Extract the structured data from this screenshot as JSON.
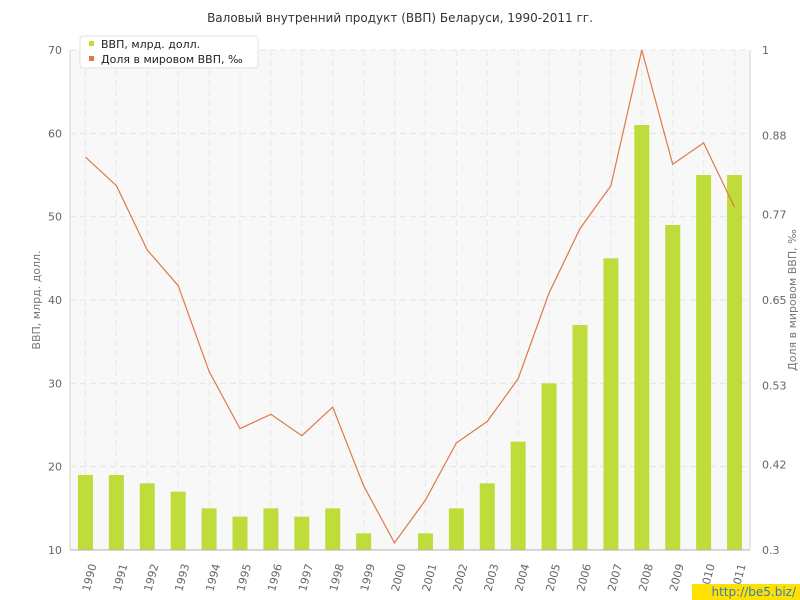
{
  "chart_data": {
    "type": "bar+line",
    "title": "Валовый внутренний продукт (ВВП) Беларуси, 1990-2011 гг.",
    "categories": [
      "1990",
      "1991",
      "1992",
      "1993",
      "1994",
      "1995",
      "1996",
      "1997",
      "1998",
      "1999",
      "2000",
      "2001",
      "2002",
      "2003",
      "2004",
      "2005",
      "2006",
      "2007",
      "2008",
      "2009",
      "2010",
      "2011"
    ],
    "series": [
      {
        "name": "ВВП, млрд. долл.",
        "type": "bar",
        "axis": "left",
        "color": "#bedd3a",
        "values": [
          19,
          19,
          18,
          17,
          15,
          14,
          15,
          14,
          15,
          12,
          10,
          12,
          15,
          18,
          23,
          30,
          37,
          45,
          61,
          49,
          55,
          55
        ]
      },
      {
        "name": "Доля в мировом ВВП, ‰",
        "type": "line",
        "axis": "right",
        "color": "#e07848",
        "values": [
          0.85,
          0.81,
          0.72,
          0.67,
          0.55,
          0.47,
          0.49,
          0.46,
          0.5,
          0.39,
          0.31,
          0.37,
          0.45,
          0.48,
          0.54,
          0.66,
          0.75,
          0.81,
          1.0,
          0.84,
          0.87,
          0.78
        ]
      }
    ],
    "ylabel": "ВВП, млрд. долл.",
    "y2label": "Доля в мировом ВВП, ‰",
    "ylim": [
      10,
      70
    ],
    "y2lim": [
      0.3,
      1
    ],
    "yticks": [
      "10",
      "20",
      "30",
      "40",
      "50",
      "60",
      "70"
    ],
    "y2ticks": [
      "0.3",
      "0.42",
      "0.53",
      "0.65",
      "0.77",
      "0.88",
      "1"
    ],
    "grid": true,
    "legend_position": "top-left"
  },
  "watermark": "http://be5.biz/"
}
